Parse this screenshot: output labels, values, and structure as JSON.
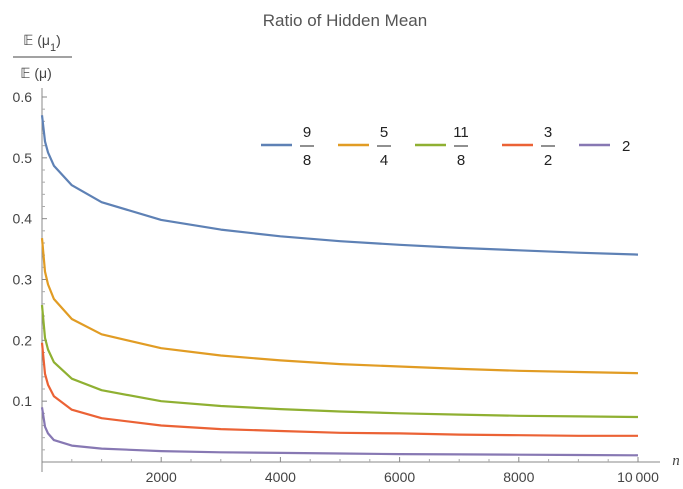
{
  "chart_data": {
    "type": "line",
    "title": "Ratio of Hidden Mean",
    "xlabel": "n",
    "ylabel": {
      "numerator": "𝔼 (μ1)",
      "denominator": "𝔼 (μ)"
    },
    "xlim": [
      0,
      10000
    ],
    "ylim": [
      0,
      0.6
    ],
    "xticks": [
      2000,
      4000,
      6000,
      8000,
      10000
    ],
    "xtick_labels": [
      "2000",
      "4000",
      "6000",
      "8000",
      "10 000"
    ],
    "yticks": [
      0.1,
      0.2,
      0.3,
      0.4,
      0.5,
      0.6
    ],
    "ytick_labels": [
      "0.1",
      "0.2",
      "0.3",
      "0.4",
      "0.5",
      "0.6"
    ],
    "legend_position": "top-right",
    "series": [
      {
        "name": "9/8",
        "legend_num": "9",
        "legend_den": "8",
        "color": "#5E81B5",
        "x": [
          0,
          50,
          100,
          200,
          500,
          1000,
          2000,
          3000,
          4000,
          5000,
          6000,
          7000,
          8000,
          9000,
          10000
        ],
        "y": [
          0.57,
          0.527,
          0.509,
          0.487,
          0.455,
          0.427,
          0.398,
          0.382,
          0.371,
          0.363,
          0.357,
          0.352,
          0.348,
          0.344,
          0.341
        ]
      },
      {
        "name": "5/4",
        "legend_num": "5",
        "legend_den": "4",
        "color": "#E19C24",
        "x": [
          0,
          50,
          100,
          200,
          500,
          1000,
          2000,
          3000,
          4000,
          5000,
          6000,
          7000,
          8000,
          9000,
          10000
        ],
        "y": [
          0.368,
          0.313,
          0.292,
          0.268,
          0.235,
          0.21,
          0.187,
          0.175,
          0.167,
          0.161,
          0.157,
          0.153,
          0.15,
          0.148,
          0.146
        ]
      },
      {
        "name": "11/8",
        "legend_num": "11",
        "legend_den": "8",
        "color": "#8FB032",
        "x": [
          0,
          50,
          100,
          200,
          500,
          1000,
          2000,
          3000,
          4000,
          5000,
          6000,
          7000,
          8000,
          9000,
          10000
        ],
        "y": [
          0.258,
          0.204,
          0.185,
          0.164,
          0.137,
          0.118,
          0.1,
          0.092,
          0.087,
          0.083,
          0.08,
          0.078,
          0.076,
          0.075,
          0.074
        ]
      },
      {
        "name": "3/2",
        "legend_num": "3",
        "legend_den": "2",
        "color": "#EB6235",
        "x": [
          0,
          50,
          100,
          200,
          500,
          1000,
          2000,
          3000,
          4000,
          5000,
          6000,
          7000,
          8000,
          9000,
          10000
        ],
        "y": [
          0.196,
          0.145,
          0.127,
          0.108,
          0.086,
          0.072,
          0.06,
          0.054,
          0.051,
          0.048,
          0.047,
          0.045,
          0.044,
          0.043,
          0.043
        ]
      },
      {
        "name": "2",
        "legend_num": "2",
        "legend_den": "",
        "color": "#8778B3",
        "x": [
          0,
          50,
          100,
          200,
          500,
          1000,
          2000,
          3000,
          4000,
          5000,
          6000,
          7000,
          8000,
          9000,
          10000
        ],
        "y": [
          0.09,
          0.058,
          0.047,
          0.036,
          0.027,
          0.022,
          0.018,
          0.016,
          0.015,
          0.014,
          0.013,
          0.0125,
          0.012,
          0.0115,
          0.011
        ]
      }
    ]
  }
}
